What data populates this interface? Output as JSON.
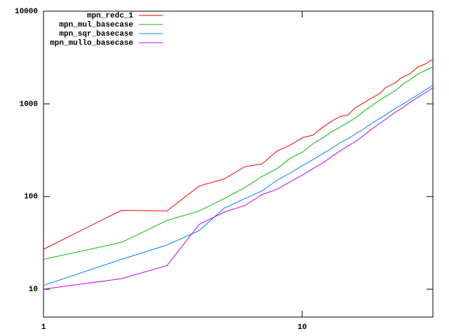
{
  "chart_data": {
    "type": "line",
    "x": [
      1,
      2,
      3,
      4,
      5,
      6,
      7,
      8,
      9,
      10,
      11,
      12,
      13,
      14,
      15,
      16,
      17,
      18,
      19,
      20,
      21,
      22,
      23,
      24,
      25,
      26,
      27,
      28,
      29,
      30,
      31,
      32
    ],
    "series": [
      {
        "name": "mpn_redc_1",
        "color": "#ff0000",
        "values": [
          27,
          71,
          70,
          130,
          155,
          210,
          225,
          310,
          360,
          430,
          460,
          560,
          650,
          730,
          760,
          900,
          1000,
          1100,
          1200,
          1300,
          1500,
          1600,
          1700,
          1900,
          2000,
          2100,
          2300,
          2500,
          2600,
          2700,
          2900,
          3000
        ]
      },
      {
        "name": "mpn_mul_basecase",
        "color": "#00c000",
        "values": [
          21,
          32,
          55,
          70,
          95,
          125,
          165,
          200,
          260,
          300,
          370,
          430,
          500,
          560,
          630,
          700,
          800,
          900,
          1000,
          1100,
          1200,
          1300,
          1400,
          1550,
          1700,
          1800,
          1950,
          2100,
          2200,
          2300,
          2400,
          2500
        ]
      },
      {
        "name": "mpn_sqr_basecase",
        "color": "#0080ff",
        "values": [
          11,
          21,
          30,
          43,
          75,
          95,
          115,
          150,
          180,
          215,
          250,
          290,
          330,
          380,
          420,
          470,
          520,
          580,
          640,
          700,
          760,
          830,
          900,
          960,
          1030,
          1100,
          1180,
          1250,
          1330,
          1420,
          1500,
          1600
        ]
      },
      {
        "name": "mpn_mullo_basecase",
        "color": "#c000ff",
        "values": [
          10,
          13,
          18,
          50,
          68,
          80,
          105,
          120,
          145,
          170,
          200,
          230,
          270,
          310,
          350,
          390,
          440,
          500,
          560,
          620,
          680,
          750,
          820,
          880,
          950,
          1030,
          1100,
          1180,
          1250,
          1330,
          1400,
          1500
        ]
      }
    ],
    "xlim": [
      1,
      32
    ],
    "ylim": [
      5,
      10000
    ],
    "xticks": [
      1,
      10
    ],
    "yticks": [
      10,
      100,
      1000,
      10000
    ],
    "xlog": true,
    "ylog": true,
    "legend": "top-left"
  }
}
